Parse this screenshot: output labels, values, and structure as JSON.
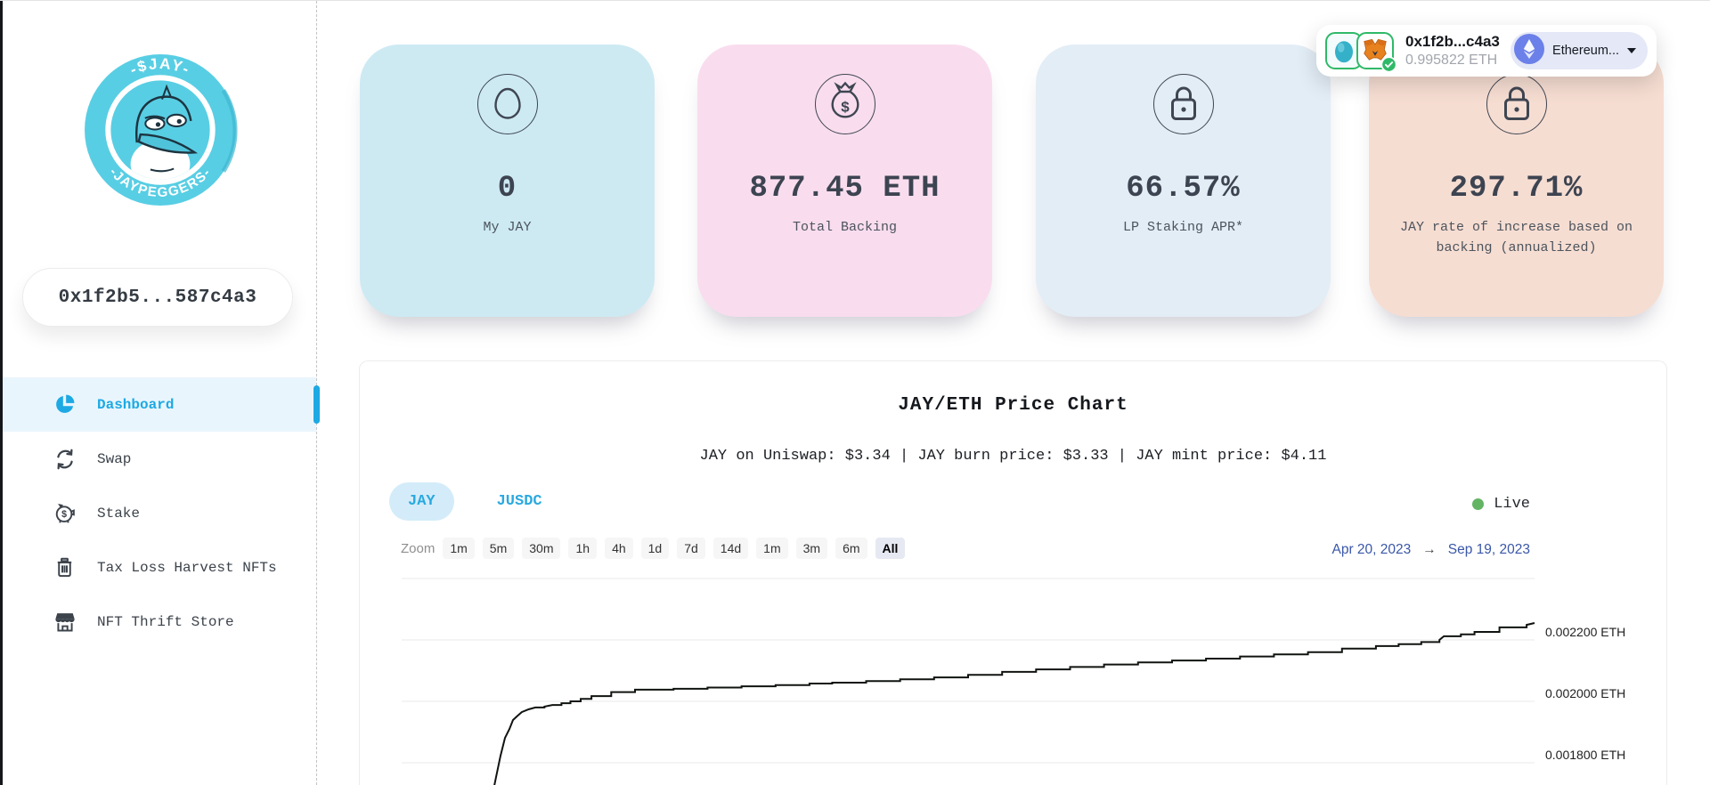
{
  "sidebar": {
    "logo": {
      "coin_top_text": "-$JAY-",
      "coin_bottom_text": "-JAYPEGGERS-"
    },
    "wallet_address": "0x1f2b5...587c4a3",
    "nav": [
      {
        "label": "Dashboard",
        "icon": "pie-chart-icon",
        "active": true
      },
      {
        "label": "Swap",
        "icon": "swap-icon"
      },
      {
        "label": "Stake",
        "icon": "piggy-bank-icon",
        "icon_glyph": "$"
      },
      {
        "label": "Tax Loss Harvest NFTs",
        "icon": "trash-icon"
      },
      {
        "label": "NFT Thrift Store",
        "icon": "storefront-icon"
      }
    ]
  },
  "header_wallet": {
    "address_short": "0x1f2b...c4a3",
    "balance": "0.995822 ETH",
    "network_label": "Ethereum...",
    "icons": [
      "egg-avatar-icon",
      "metamask-fox-icon",
      "connected-check-icon",
      "ethereum-icon",
      "caret-down-icon"
    ]
  },
  "stat_cards": [
    {
      "icon": "egg-icon",
      "value": "0",
      "label": "My JAY",
      "bg": "#cdeaf3"
    },
    {
      "icon": "money-bag-icon",
      "icon_glyph": "$",
      "value": "877.45 ETH",
      "label": "Total Backing",
      "bg": "#f9ddee"
    },
    {
      "icon": "lock-icon",
      "value": "66.57%",
      "label": "LP Staking APR*",
      "bg": "#e3edf6"
    },
    {
      "icon": "lock-icon",
      "value": "297.71%",
      "label": "JAY rate of increase based on backing (annualized)",
      "bg": "#f6ddd2"
    }
  ],
  "chart": {
    "title": "JAY/ETH Price Chart",
    "subtitle": "JAY on Uniswap: $3.34 | JAY burn price: $3.33 | JAY mint price: $4.11",
    "tabs": [
      {
        "label": "JAY",
        "active": true
      },
      {
        "label": "JUSDC",
        "active": false
      }
    ],
    "live_label": "Live",
    "zoom": {
      "label": "Zoom",
      "buttons": [
        "1m",
        "5m",
        "30m",
        "1h",
        "4h",
        "1d",
        "7d",
        "14d",
        "1m",
        "3m",
        "6m",
        "All"
      ],
      "active": "All"
    },
    "date_range": {
      "from": "Apr 20, 2023",
      "arrow": "→",
      "to": "Sep 19, 2023"
    }
  },
  "chart_data": {
    "type": "line",
    "title": "JAY/ETH Price Chart",
    "x_range": [
      "Apr 20, 2023",
      "Sep 19, 2023"
    ],
    "xlabel": "",
    "ylabel": "ETH",
    "grid": true,
    "legend": "none",
    "note": "visible portion of JAY/ETH price, series clipped at bottom of viewport",
    "y_ticks": [
      {
        "value": 0.0024,
        "label": ""
      },
      {
        "value": 0.0022,
        "label": "0.002200 ETH"
      },
      {
        "value": 0.002,
        "label": "0.002000 ETH"
      },
      {
        "value": 0.0018,
        "label": "0.001800 ETH"
      }
    ],
    "line_color": "#101410",
    "points": [
      [
        0.0818,
        0.001725
      ],
      [
        0.083,
        0.001748
      ],
      [
        0.0873,
        0.001823
      ],
      [
        0.0912,
        0.001881
      ],
      [
        0.0951,
        0.00191
      ],
      [
        0.0983,
        0.001939
      ],
      [
        0.102,
        0.001952
      ],
      [
        0.106,
        0.001965
      ],
      [
        0.112,
        0.001974
      ],
      [
        0.118,
        0.00198
      ],
      [
        0.126,
        0.001983
      ],
      [
        0.133,
        0.001988
      ],
      [
        0.141,
        0.001994
      ],
      [
        0.149,
        0.002
      ],
      [
        0.158,
        0.002008
      ],
      [
        0.1675,
        0.002017
      ],
      [
        0.185,
        0.00203
      ],
      [
        0.206,
        0.002038
      ],
      [
        0.24,
        0.002041
      ],
      [
        0.27,
        0.002045
      ],
      [
        0.3,
        0.002049
      ],
      [
        0.33,
        0.002053
      ],
      [
        0.36,
        0.002058
      ],
      [
        0.38,
        0.002061
      ],
      [
        0.41,
        0.002066
      ],
      [
        0.44,
        0.002072
      ],
      [
        0.47,
        0.002078
      ],
      [
        0.5,
        0.002086
      ],
      [
        0.53,
        0.002096
      ],
      [
        0.56,
        0.002104
      ],
      [
        0.59,
        0.002112
      ],
      [
        0.62,
        0.00212
      ],
      [
        0.65,
        0.002127
      ],
      [
        0.68,
        0.002133
      ],
      [
        0.71,
        0.002139
      ],
      [
        0.74,
        0.002146
      ],
      [
        0.77,
        0.002153
      ],
      [
        0.8,
        0.00216
      ],
      [
        0.83,
        0.002172
      ],
      [
        0.86,
        0.00218
      ],
      [
        0.88,
        0.002186
      ],
      [
        0.9,
        0.002193
      ],
      [
        0.916,
        0.0022
      ],
      [
        0.92,
        0.002212
      ],
      [
        0.935,
        0.002218
      ],
      [
        0.947,
        0.002226
      ],
      [
        0.969,
        0.002241
      ],
      [
        0.993,
        0.002249
      ],
      [
        1.0,
        0.002255
      ]
    ]
  },
  "colors": {
    "accent_blue": "#1da9e4",
    "nav_active_bg": "#e9f5fc",
    "tab_active_bg": "#d4ecf9",
    "live_green": "#63b463",
    "date_blue": "#3a57a8",
    "connected_green": "#2fb968",
    "ethereum_purple": "#6b80e8",
    "card_bgs": [
      "#cdeaf3",
      "#f9ddee",
      "#e3edf6",
      "#f6ddd2"
    ],
    "line_color": "#101410"
  }
}
